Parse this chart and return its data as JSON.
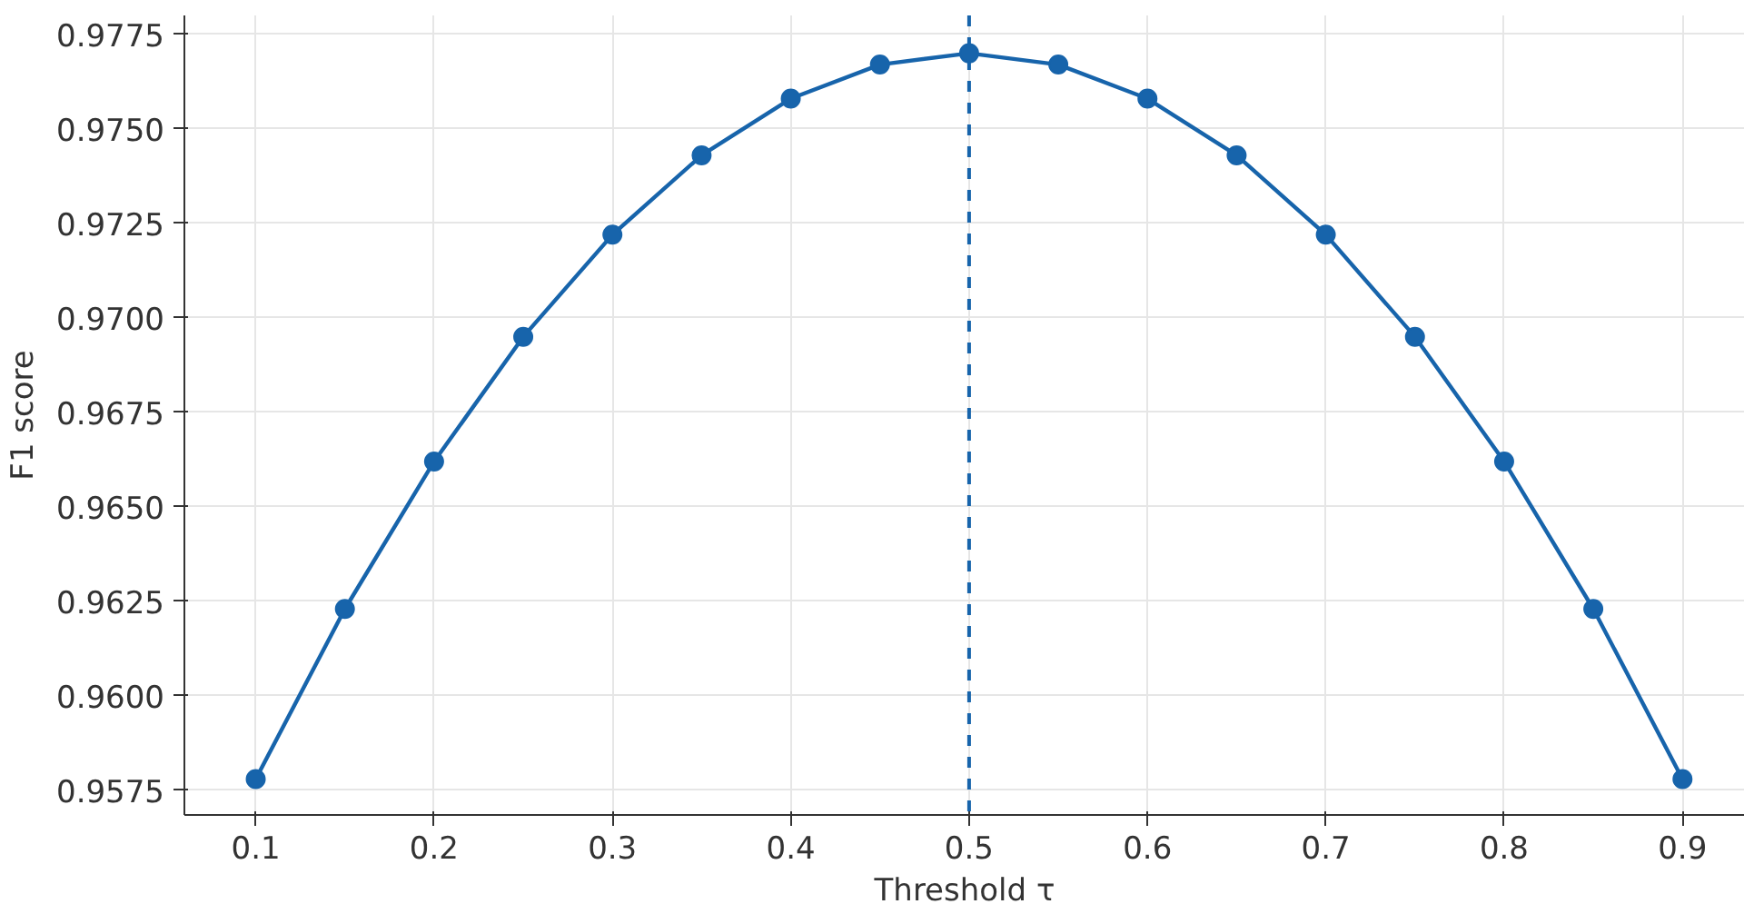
{
  "chart_data": {
    "type": "line",
    "xlabel": "Threshold τ",
    "ylabel": "F1 score",
    "x": [
      0.1,
      0.15,
      0.2,
      0.25,
      0.3,
      0.35,
      0.4,
      0.45,
      0.5,
      0.55,
      0.6,
      0.65,
      0.7,
      0.75,
      0.8,
      0.85,
      0.9
    ],
    "series": [
      {
        "color": "#1764ab",
        "values": [
          0.9578,
          0.9623,
          0.9662,
          0.9695,
          0.9722,
          0.9743,
          0.9758,
          0.9767,
          0.977,
          0.9767,
          0.9758,
          0.9743,
          0.9722,
          0.9695,
          0.9662,
          0.9623,
          0.9578
        ]
      }
    ],
    "xlim": [
      0.06,
      0.935
    ],
    "ylim": [
      0.95685,
      0.978
    ],
    "xticks": [
      0.1,
      0.2,
      0.3,
      0.4,
      0.5,
      0.6,
      0.7,
      0.8,
      0.9
    ],
    "yticks": [
      {
        "value": 0.9575,
        "label": "0.9575"
      },
      {
        "value": 0.96,
        "label": "0.9600"
      },
      {
        "value": 0.9625,
        "label": "0.9625"
      },
      {
        "value": 0.965,
        "label": "0.9650"
      },
      {
        "value": 0.9675,
        "label": "0.9675"
      },
      {
        "value": 0.97,
        "label": "0.9700"
      },
      {
        "value": 0.9725,
        "label": "0.9725"
      },
      {
        "value": 0.975,
        "label": "0.9750"
      },
      {
        "value": 0.9775,
        "label": "0.9775"
      }
    ],
    "ref_lines": [
      {
        "axis": "x",
        "value": 0.5,
        "color": "#1764ab",
        "line_style": "dashed"
      }
    ],
    "grid": true,
    "marker": "circle",
    "line_style": "solid"
  }
}
